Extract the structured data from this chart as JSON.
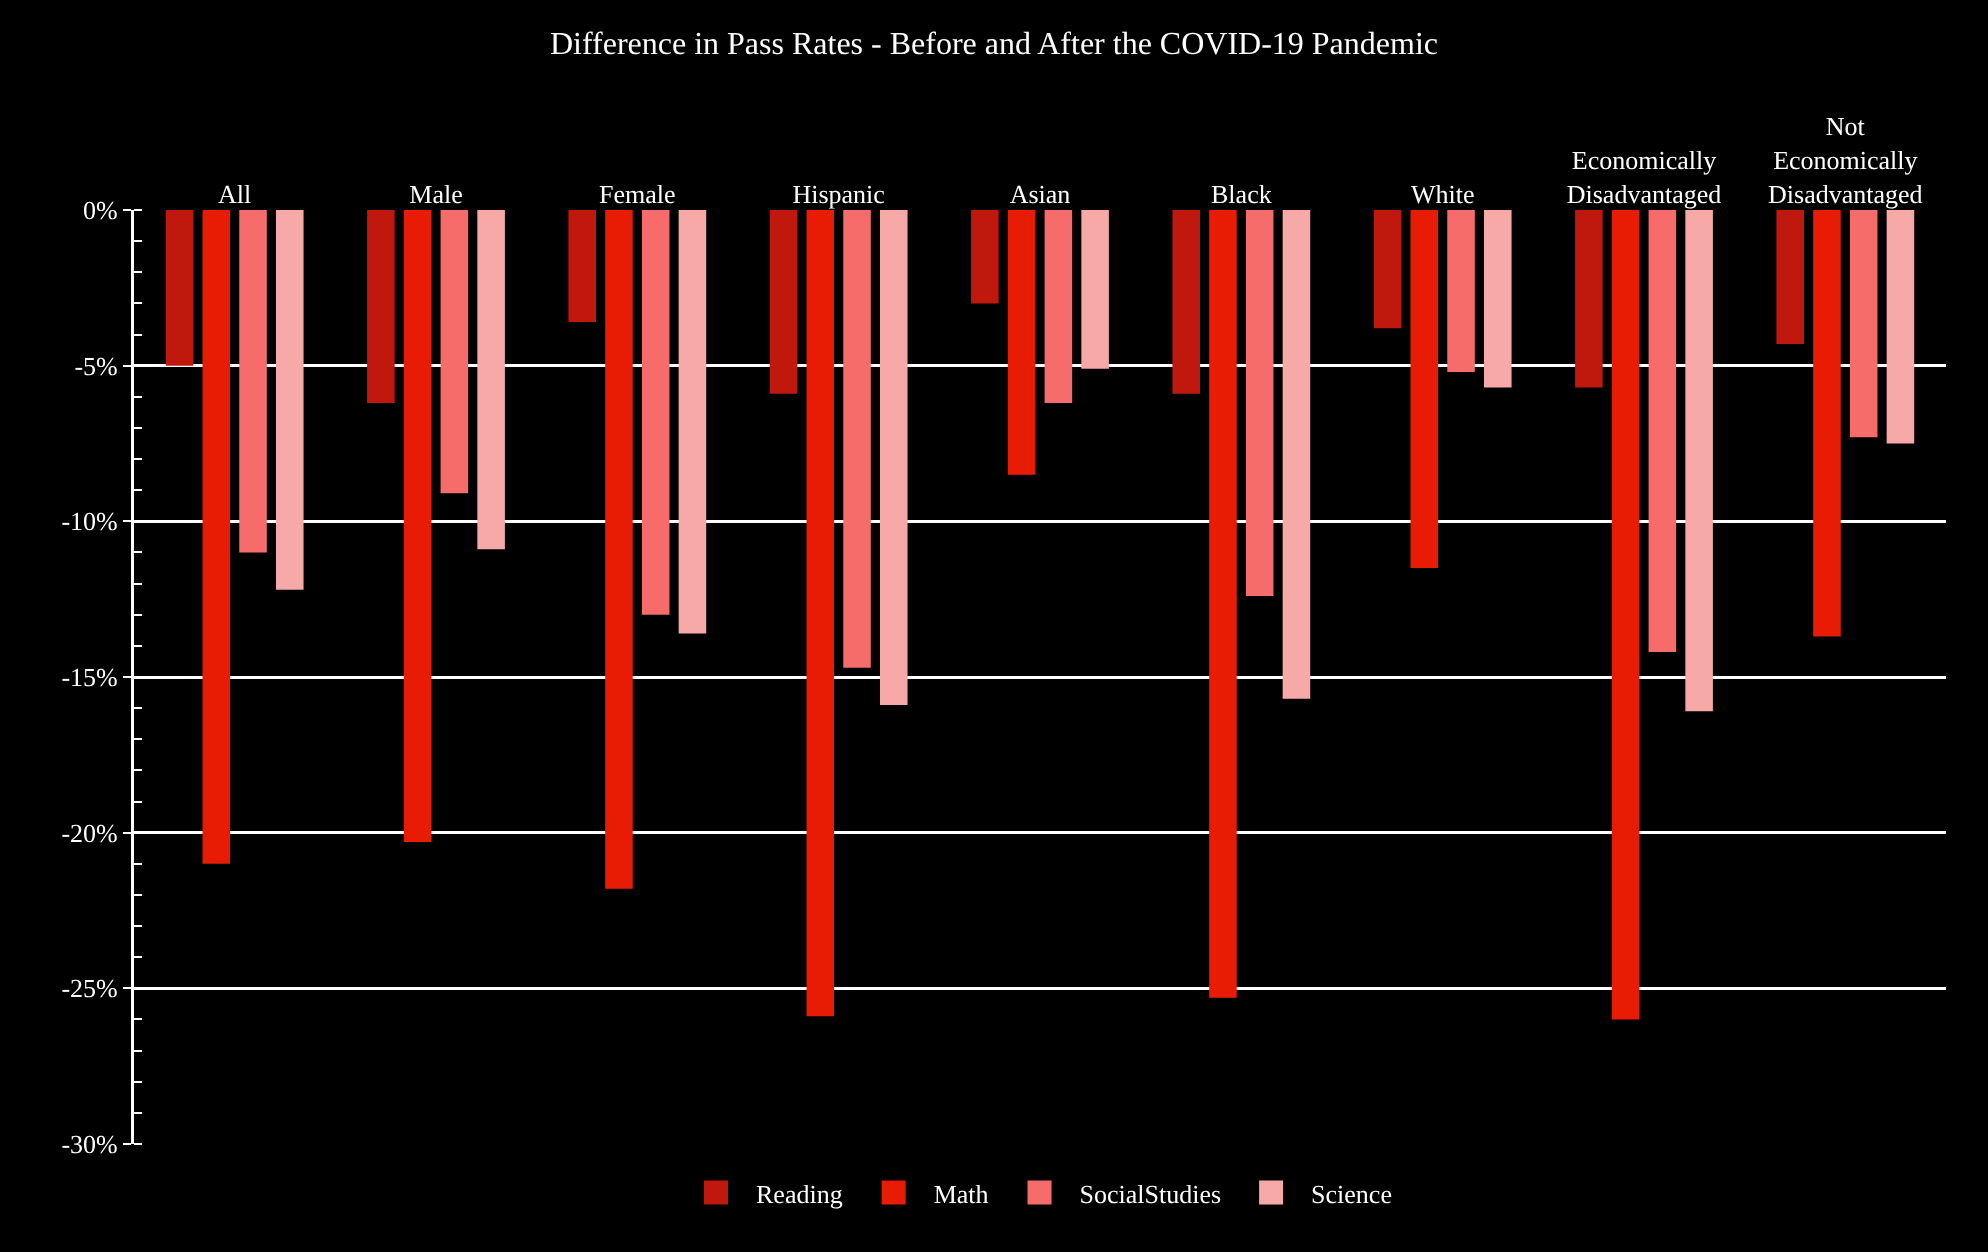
{
  "chart_data": {
    "type": "bar",
    "title": "Difference in Pass Rates - Before and After the COVID-19 Pandemic",
    "categories": [
      "All",
      "Male",
      "Female",
      "Hispanic",
      "Asian",
      "Black",
      "White",
      "Economically Disadvantaged",
      "Not Economically Disadvantaged"
    ],
    "series": [
      {
        "name": "Reading",
        "color": "#c0180c",
        "values": [
          -5.0,
          -6.2,
          -3.6,
          -5.9,
          -3.0,
          -5.9,
          -3.8,
          -5.7,
          -4.3
        ]
      },
      {
        "name": "Math",
        "color": "#e81c04",
        "values": [
          -21.0,
          -20.3,
          -21.8,
          -25.9,
          -8.5,
          -25.3,
          -11.5,
          -26.0,
          -13.7
        ]
      },
      {
        "name": "SocialStudies",
        "color": "#f56c6a",
        "values": [
          -11.0,
          -9.1,
          -13.0,
          -14.7,
          -6.2,
          -12.4,
          -5.2,
          -14.2,
          -7.3
        ]
      },
      {
        "name": "Science",
        "color": "#f7a9a8",
        "values": [
          -12.2,
          -10.9,
          -13.6,
          -15.9,
          -5.1,
          -15.7,
          -5.7,
          -16.1,
          -7.5
        ]
      }
    ],
    "ylim": [
      -30,
      0
    ],
    "yticks": [
      {
        "value": 0,
        "label": "0%"
      },
      {
        "value": -5,
        "label": "-5%"
      },
      {
        "value": -10,
        "label": "-10%"
      },
      {
        "value": -15,
        "label": "-15%"
      },
      {
        "value": -20,
        "label": "-20%"
      },
      {
        "value": -25,
        "label": "-25%"
      },
      {
        "value": -30,
        "label": "-30%"
      }
    ],
    "grid": "y",
    "legend": "bottom"
  }
}
